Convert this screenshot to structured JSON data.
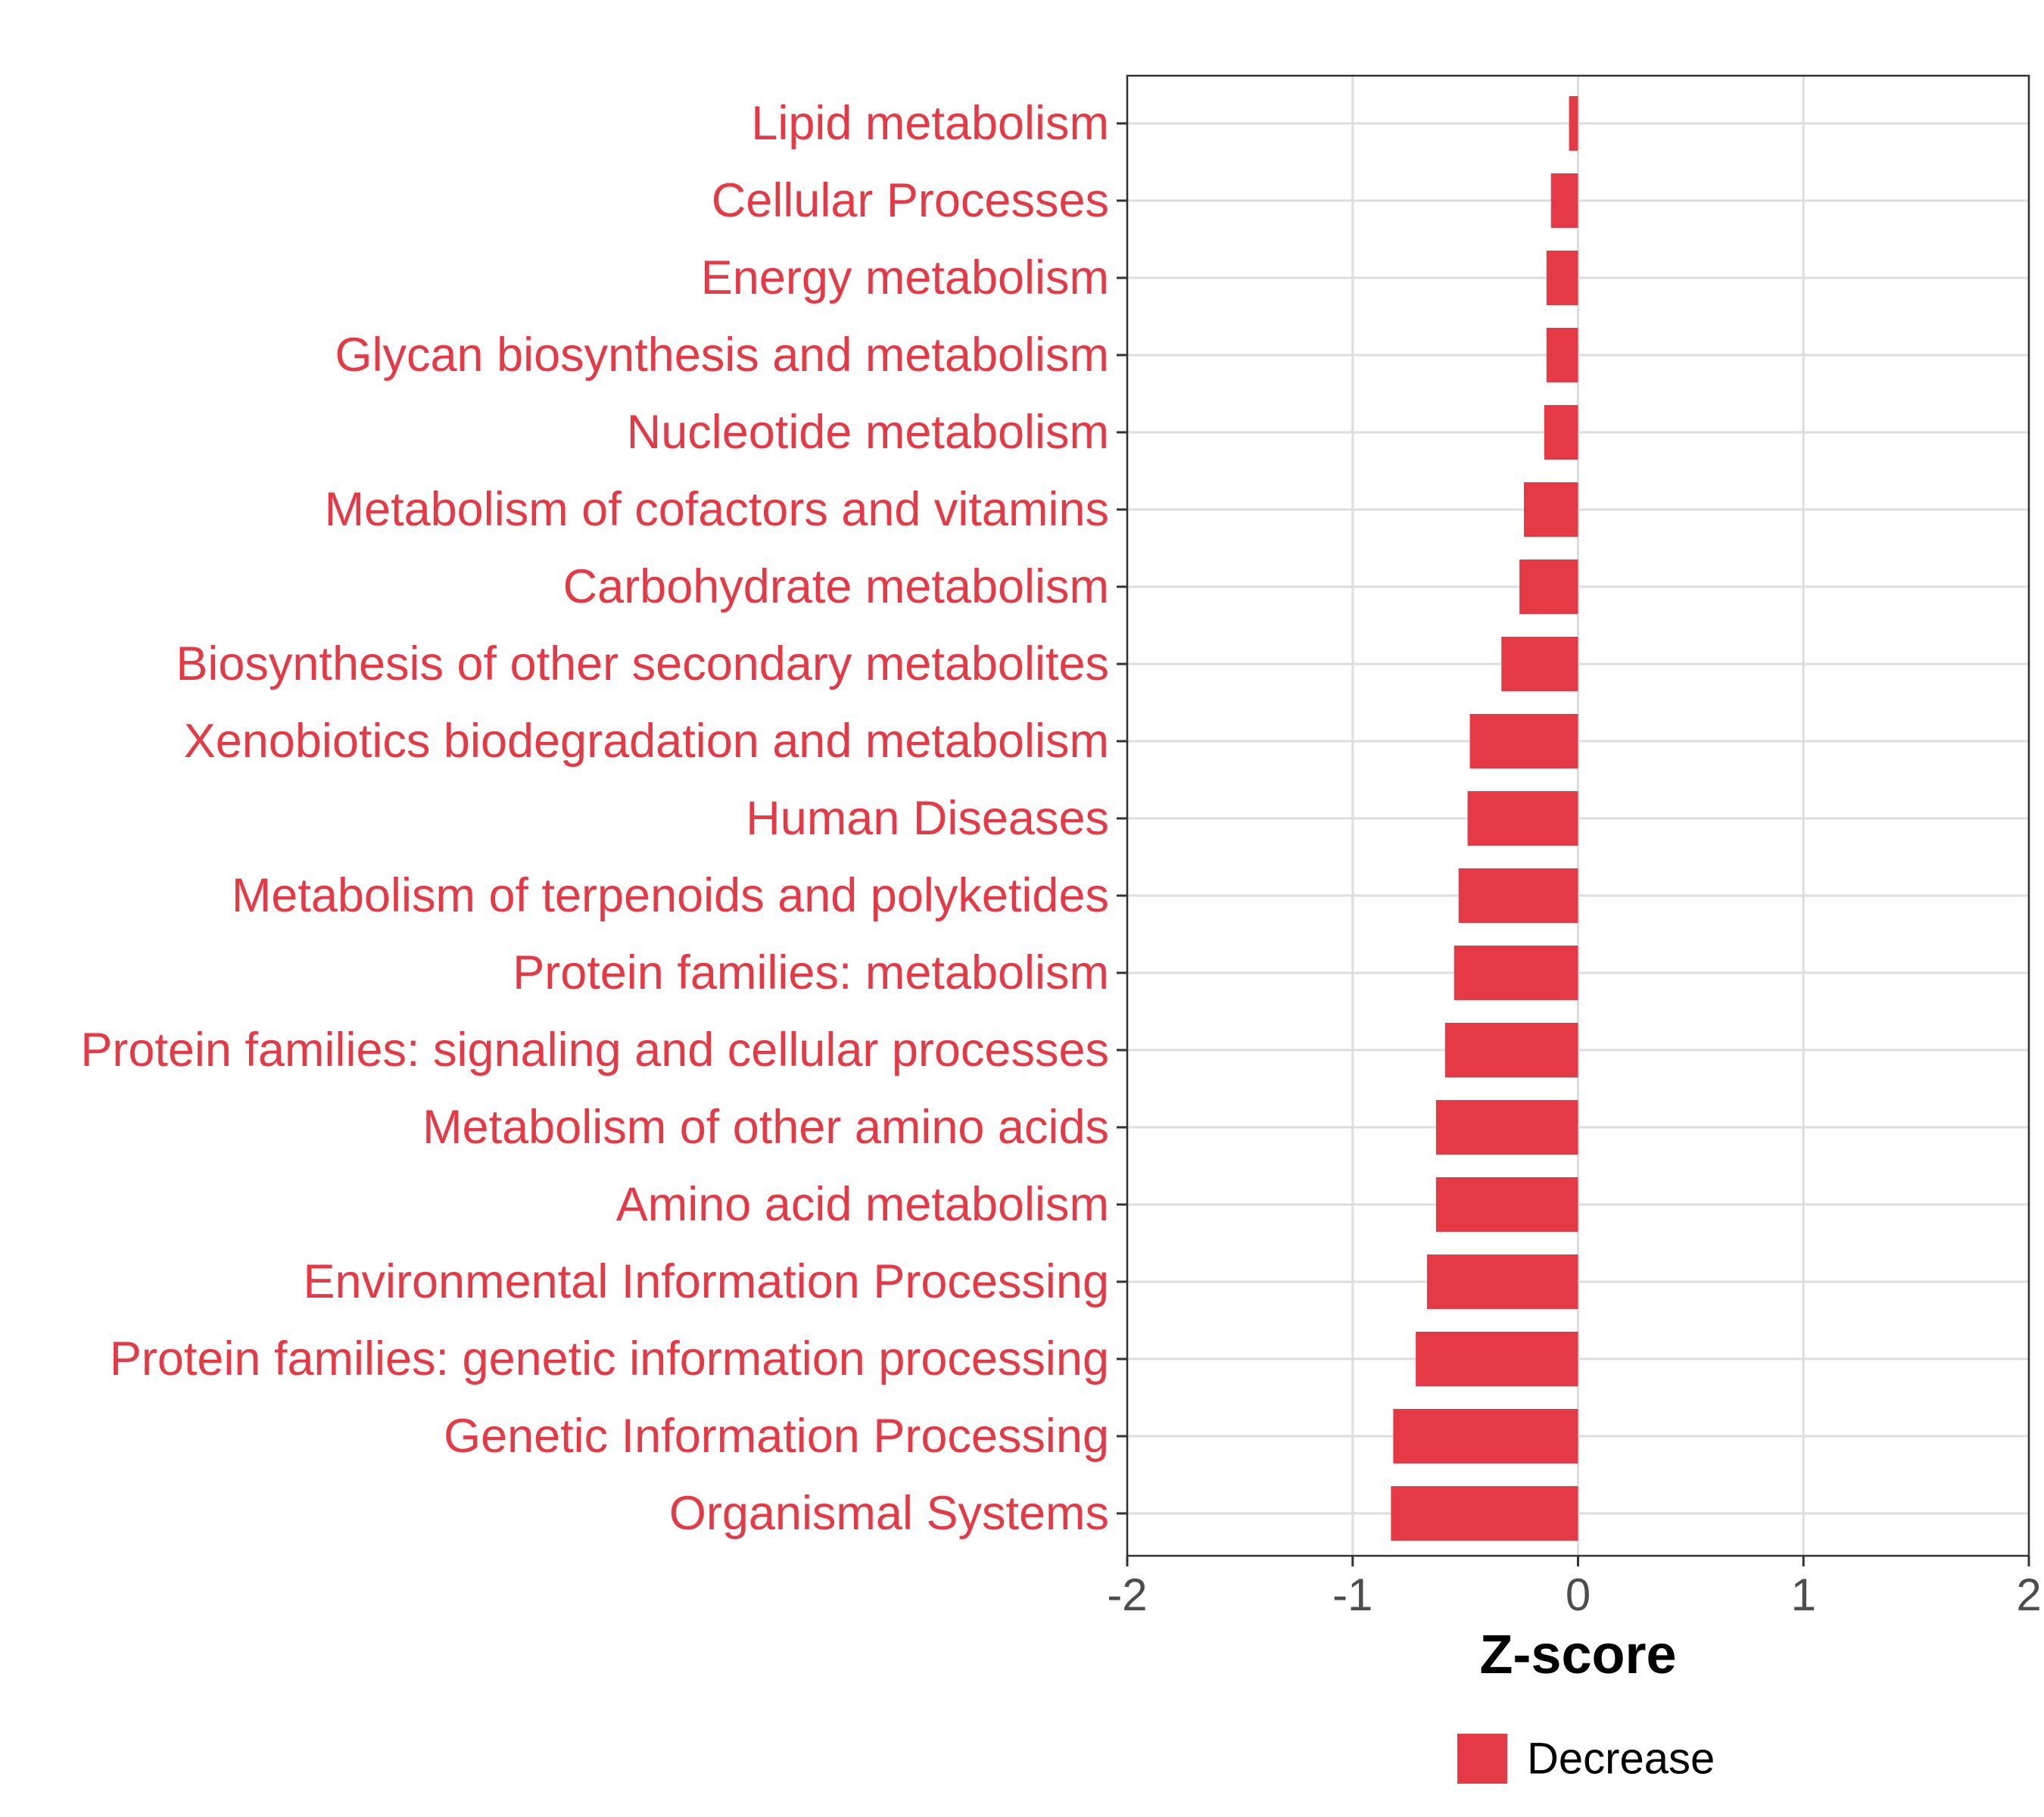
{
  "chart_data": {
    "type": "bar",
    "orientation": "horizontal",
    "xlabel": "Z-score",
    "ylabel": "",
    "xlim": [
      -2,
      2
    ],
    "xticks": [
      "-2",
      "-1",
      "0",
      "1",
      "2"
    ],
    "grid": true,
    "legend_position": "bottom",
    "colors": {
      "bar": "#e63946",
      "label": "#e63946",
      "grid": "#dddddd",
      "border": "#333333"
    },
    "series": [
      {
        "name": "Decrease",
        "categories": [
          "Lipid metabolism",
          "Cellular Processes",
          "Energy metabolism",
          "Glycan biosynthesis and metabolism",
          "Nucleotide metabolism",
          "Metabolism of cofactors and vitamins",
          "Carbohydrate metabolism",
          "Biosynthesis of other secondary metabolites",
          "Xenobiotics biodegradation and metabolism",
          "Human Diseases",
          "Metabolism of terpenoids and polyketides",
          "Protein families: metabolism",
          "Protein families: signaling and cellular processes",
          "Metabolism of other amino acids",
          "Amino acid metabolism",
          "Environmental Information Processing",
          "Protein families: genetic information processing",
          "Genetic Information Processing",
          "Organismal Systems"
        ],
        "values": [
          -0.04,
          -0.12,
          -0.14,
          -0.14,
          -0.15,
          -0.24,
          -0.26,
          -0.34,
          -0.48,
          -0.49,
          -0.53,
          -0.55,
          -0.59,
          -0.63,
          -0.63,
          -0.67,
          -0.72,
          -0.82,
          -0.83
        ]
      }
    ],
    "legend": [
      {
        "label": "Decrease",
        "color": "#e63946"
      }
    ]
  }
}
